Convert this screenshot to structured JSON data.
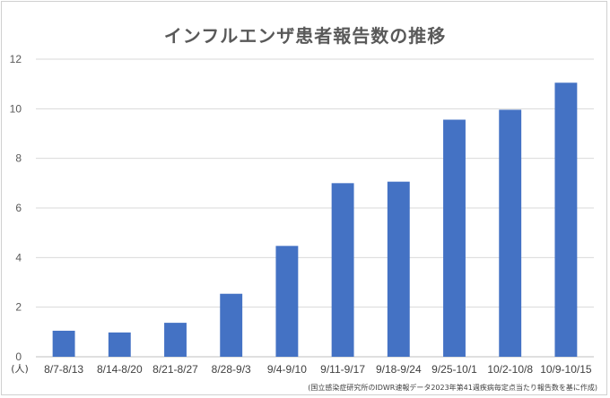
{
  "chart_data": {
    "type": "bar",
    "title": "インフルエンザ患者報告数の推移",
    "categories": [
      "8/7-8/13",
      "8/14-8/20",
      "8/21-8/27",
      "8/28-9/3",
      "9/4-9/10",
      "9/11-9/17",
      "9/18-9/24",
      "9/25-10/1",
      "10/2-10/8",
      "10/9-10/15"
    ],
    "values": [
      1.05,
      0.98,
      1.37,
      2.54,
      4.47,
      7.0,
      7.06,
      9.56,
      9.96,
      11.05
    ],
    "ylim": [
      0,
      12
    ],
    "yticks": [
      "0",
      "2",
      "4",
      "6",
      "8",
      "10",
      "12"
    ],
    "ylabel": "(人)",
    "grid": true,
    "bar_color": "#4472C4",
    "note": "(国立感染症研究所のIDWR速報データ2023年第41週疾病毎定点当たり報告数を基に作成)"
  }
}
